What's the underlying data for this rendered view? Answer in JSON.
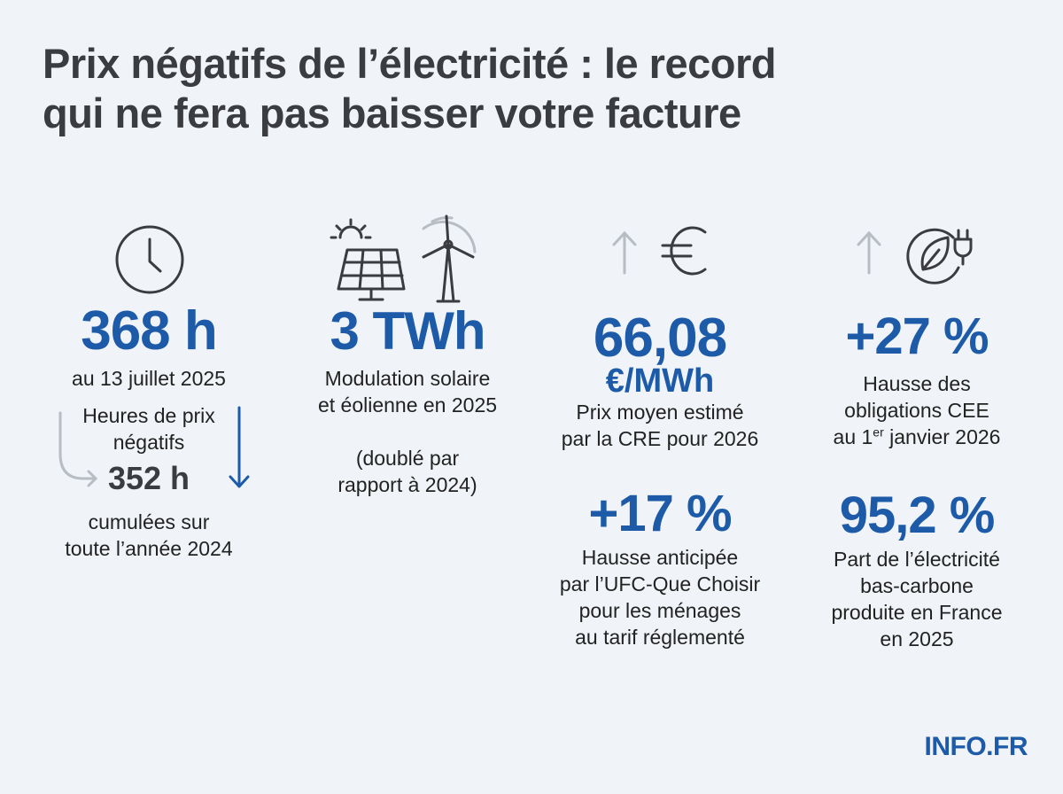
{
  "title": {
    "line1": "Prix négatifs de l’électricité : le record",
    "line2": "qui ne fera pas baisser votre facture"
  },
  "col1": {
    "icon": "clock-icon",
    "value": "368 h",
    "date": "au 13 juillet 2025",
    "label_l1": "Heures de prix",
    "label_l2": "négatifs",
    "value2": "352 h",
    "cumul_l1": "cumulées sur",
    "cumul_l2": "toute l’année 2024"
  },
  "col2": {
    "icons": [
      "sun-icon",
      "solar-panel-icon",
      "wind-turbine-icon"
    ],
    "value": "3 TWh",
    "desc_l1": "Modulation solaire",
    "desc_l2": "et éolienne en 2025",
    "note_l1": "(doublé par",
    "note_l2": "rapport à 2024)"
  },
  "col3": {
    "icons": [
      "arrow-up-icon",
      "euro-icon"
    ],
    "value": "66,08",
    "unit": "€/MWh",
    "desc_l1": "Prix moyen estimé",
    "desc_l2": "par la CRE pour 2026",
    "value2": "+17 %",
    "desc2_l1": "Hausse anticipée",
    "desc2_l2": "par l’UFC-Que Choisir",
    "desc2_l3": "pour les ménages",
    "desc2_l4": "au tarif réglementé"
  },
  "col4": {
    "icons": [
      "arrow-up-icon",
      "leaf-plug-icon"
    ],
    "value": "+27 %",
    "desc_l1": "Hausse des",
    "desc_l2": "obligations CEE",
    "desc_l3_pre": "au 1",
    "desc_l3_sup": "er",
    "desc_l3_post": " janvier 2026",
    "value2": "95,2 %",
    "desc2_l1": "Part de l’électricité",
    "desc2_l2": "bas-carbone",
    "desc2_l3": "produite en France",
    "desc2_l4": "en 2025"
  },
  "brand": "INFO.FR",
  "colors": {
    "accent": "#1d5ba8",
    "text": "#3a3c40",
    "background": "#f0f3f7"
  }
}
